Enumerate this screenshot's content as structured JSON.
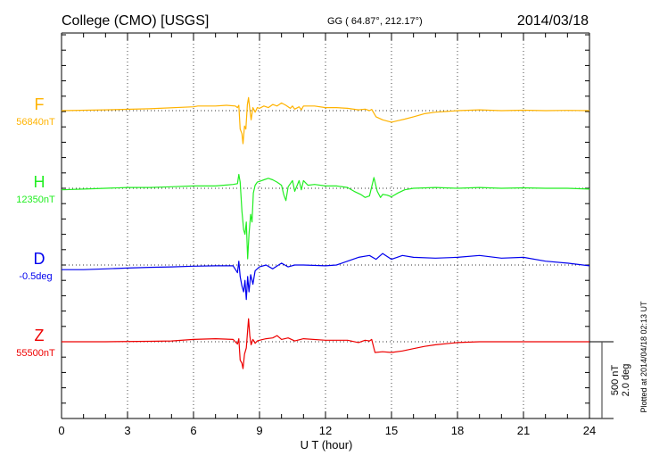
{
  "chart_data": {
    "type": "line",
    "title": "College (CMO)  [USGS]",
    "subtitle": "GG ( 64.87°, 212.17°)",
    "date": "2014/03/18",
    "xlabel": "U T (hour)",
    "xlim": [
      0,
      24
    ],
    "xticks": [
      "0",
      "3",
      "6",
      "9",
      "12",
      "15",
      "18",
      "21",
      "24"
    ],
    "grid": true,
    "scale_labels": [
      "500 nT",
      "2.0 deg"
    ],
    "scale": {
      "nT": 500,
      "deg": 2.0
    },
    "footer": "Plotted at 2014/04/18 02:13 UT",
    "series": [
      {
        "name": "F",
        "baseline_label": "56840nT",
        "unit": "nT",
        "color": "#ffb300",
        "points": [
          [
            0,
            0
          ],
          [
            2,
            5
          ],
          [
            4,
            12
          ],
          [
            6,
            25
          ],
          [
            6.2,
            30
          ],
          [
            7,
            30
          ],
          [
            7.5,
            35
          ],
          [
            7.9,
            30
          ],
          [
            8.0,
            20
          ],
          [
            8.06,
            35
          ],
          [
            8.12,
            -120
          ],
          [
            8.2,
            -150
          ],
          [
            8.25,
            -215
          ],
          [
            8.32,
            -100
          ],
          [
            8.38,
            -120
          ],
          [
            8.45,
            40
          ],
          [
            8.5,
            85
          ],
          [
            8.56,
            10
          ],
          [
            8.62,
            -60
          ],
          [
            8.7,
            20
          ],
          [
            8.8,
            -10
          ],
          [
            8.9,
            20
          ],
          [
            9,
            15
          ],
          [
            9.2,
            30
          ],
          [
            9.4,
            20
          ],
          [
            9.6,
            40
          ],
          [
            9.8,
            30
          ],
          [
            10,
            50
          ],
          [
            10.2,
            35
          ],
          [
            10.4,
            15
          ],
          [
            10.5,
            30
          ],
          [
            10.6,
            10
          ],
          [
            10.8,
            25
          ],
          [
            10.9,
            5
          ],
          [
            11,
            30
          ],
          [
            11.5,
            30
          ],
          [
            12,
            20
          ],
          [
            12.5,
            20
          ],
          [
            13,
            15
          ],
          [
            13.5,
            5
          ],
          [
            13.8,
            10
          ],
          [
            14,
            0
          ],
          [
            14.1,
            8
          ],
          [
            14.3,
            -40
          ],
          [
            14.6,
            -60
          ],
          [
            15,
            -75
          ],
          [
            15.3,
            -65
          ],
          [
            15.6,
            -55
          ],
          [
            16,
            -40
          ],
          [
            16.5,
            -20
          ],
          [
            17,
            -10
          ],
          [
            17.5,
            -5
          ],
          [
            18,
            0
          ],
          [
            19,
            5
          ],
          [
            20,
            0
          ],
          [
            21,
            3
          ],
          [
            22,
            0
          ],
          [
            23,
            2
          ],
          [
            24,
            0
          ]
        ]
      },
      {
        "name": "H",
        "baseline_label": "12350nT",
        "unit": "nT",
        "color": "#22ee22",
        "points": [
          [
            0,
            -10
          ],
          [
            1,
            -5
          ],
          [
            2,
            0
          ],
          [
            3,
            5
          ],
          [
            4,
            5
          ],
          [
            5,
            10
          ],
          [
            6,
            15
          ],
          [
            7,
            15
          ],
          [
            7.8,
            25
          ],
          [
            8.0,
            30
          ],
          [
            8.06,
            90
          ],
          [
            8.12,
            40
          ],
          [
            8.2,
            -150
          ],
          [
            8.28,
            -270
          ],
          [
            8.34,
            -300
          ],
          [
            8.4,
            -220
          ],
          [
            8.46,
            -460
          ],
          [
            8.52,
            -300
          ],
          [
            8.6,
            -170
          ],
          [
            8.66,
            -220
          ],
          [
            8.72,
            -30
          ],
          [
            8.8,
            20
          ],
          [
            8.9,
            40
          ],
          [
            9,
            45
          ],
          [
            9.2,
            55
          ],
          [
            9.4,
            65
          ],
          [
            9.6,
            55
          ],
          [
            9.8,
            40
          ],
          [
            10,
            20
          ],
          [
            10.1,
            -40
          ],
          [
            10.2,
            -80
          ],
          [
            10.3,
            10
          ],
          [
            10.5,
            50
          ],
          [
            10.6,
            -20
          ],
          [
            10.8,
            50
          ],
          [
            10.9,
            -10
          ],
          [
            11,
            50
          ],
          [
            11.2,
            20
          ],
          [
            11.5,
            25
          ],
          [
            12,
            15
          ],
          [
            12.5,
            15
          ],
          [
            13,
            5
          ],
          [
            13.3,
            -20
          ],
          [
            13.6,
            -40
          ],
          [
            13.8,
            -60
          ],
          [
            14,
            -50
          ],
          [
            14.1,
            10
          ],
          [
            14.2,
            70
          ],
          [
            14.35,
            -20
          ],
          [
            14.5,
            -60
          ],
          [
            14.6,
            -40
          ],
          [
            14.8,
            -45
          ],
          [
            15,
            -55
          ],
          [
            15.3,
            -30
          ],
          [
            15.6,
            -10
          ],
          [
            16,
            0
          ],
          [
            17,
            5
          ],
          [
            18,
            0
          ],
          [
            19,
            5
          ],
          [
            20,
            0
          ],
          [
            21,
            3
          ],
          [
            22,
            0
          ],
          [
            23,
            0
          ],
          [
            24,
            -5
          ]
        ]
      },
      {
        "name": "D",
        "baseline_label": "-0.5deg",
        "unit": "deg",
        "color": "#0000ee",
        "points": [
          [
            0,
            -0.12
          ],
          [
            1,
            -0.12
          ],
          [
            2,
            -0.1
          ],
          [
            3,
            -0.08
          ],
          [
            4,
            -0.06
          ],
          [
            5,
            -0.05
          ],
          [
            6,
            -0.03
          ],
          [
            7,
            -0.02
          ],
          [
            7.8,
            -0.02
          ],
          [
            8.0,
            -0.2
          ],
          [
            8.06,
            0.1
          ],
          [
            8.12,
            -0.3
          ],
          [
            8.2,
            -0.55
          ],
          [
            8.28,
            -0.7
          ],
          [
            8.34,
            -0.4
          ],
          [
            8.4,
            -0.9
          ],
          [
            8.46,
            -0.3
          ],
          [
            8.52,
            -0.7
          ],
          [
            8.6,
            -0.25
          ],
          [
            8.7,
            -0.5
          ],
          [
            8.8,
            -0.15
          ],
          [
            9,
            -0.05
          ],
          [
            9.3,
            0
          ],
          [
            9.6,
            -0.1
          ],
          [
            10,
            0.05
          ],
          [
            10.3,
            -0.05
          ],
          [
            10.6,
            0
          ],
          [
            11,
            0
          ],
          [
            12,
            -0.02
          ],
          [
            12.5,
            0
          ],
          [
            13,
            0.1
          ],
          [
            13.5,
            0.2
          ],
          [
            14,
            0.25
          ],
          [
            14.3,
            0.15
          ],
          [
            14.6,
            0.3
          ],
          [
            15,
            0.15
          ],
          [
            15.5,
            0.25
          ],
          [
            16,
            0.2
          ],
          [
            17,
            0.18
          ],
          [
            18,
            0.2
          ],
          [
            19,
            0.25
          ],
          [
            20,
            0.18
          ],
          [
            21,
            0.2
          ],
          [
            22,
            0.1
          ],
          [
            23,
            0.05
          ],
          [
            24,
            -0.02
          ]
        ]
      },
      {
        "name": "Z",
        "baseline_label": "55500nT",
        "unit": "nT",
        "color": "#ee0000",
        "points": [
          [
            0,
            0
          ],
          [
            2,
            0
          ],
          [
            4,
            3
          ],
          [
            5,
            5
          ],
          [
            6,
            15
          ],
          [
            7,
            20
          ],
          [
            7.8,
            15
          ],
          [
            8.0,
            -15
          ],
          [
            8.06,
            20
          ],
          [
            8.12,
            -120
          ],
          [
            8.2,
            -140
          ],
          [
            8.25,
            -175
          ],
          [
            8.32,
            -80
          ],
          [
            8.4,
            -40
          ],
          [
            8.5,
            150
          ],
          [
            8.56,
            40
          ],
          [
            8.62,
            -20
          ],
          [
            8.7,
            15
          ],
          [
            8.8,
            -10
          ],
          [
            8.9,
            5
          ],
          [
            9,
            10
          ],
          [
            9.3,
            20
          ],
          [
            9.6,
            25
          ],
          [
            9.8,
            40
          ],
          [
            10,
            15
          ],
          [
            10.3,
            25
          ],
          [
            10.6,
            5
          ],
          [
            11,
            20
          ],
          [
            12,
            10
          ],
          [
            13,
            10
          ],
          [
            13.5,
            -5
          ],
          [
            13.8,
            10
          ],
          [
            14,
            5
          ],
          [
            14.1,
            15
          ],
          [
            14.25,
            -70
          ],
          [
            14.6,
            -65
          ],
          [
            15,
            -70
          ],
          [
            15.5,
            -60
          ],
          [
            16,
            -45
          ],
          [
            16.5,
            -30
          ],
          [
            17,
            -20
          ],
          [
            18,
            -5
          ],
          [
            19,
            0
          ],
          [
            20,
            0
          ],
          [
            21,
            0
          ],
          [
            22,
            0
          ],
          [
            23,
            0
          ],
          [
            24,
            0
          ]
        ]
      }
    ]
  }
}
